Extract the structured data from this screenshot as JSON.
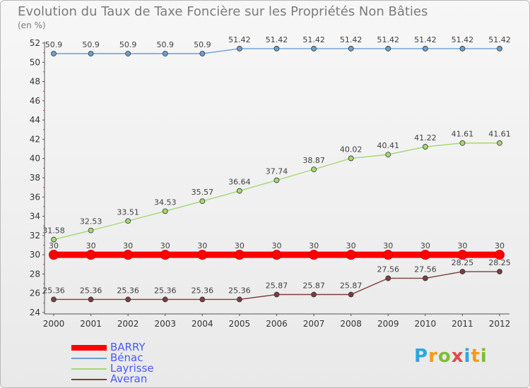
{
  "header": {
    "title": "Evolution du Taux de Taxe Foncière sur les Propriétés Non Bâties",
    "unit": "(en %)"
  },
  "logo": {
    "letters": [
      "P",
      "r",
      "o",
      "x",
      "i",
      "t",
      "i"
    ],
    "colors": [
      "#2aa8e0",
      "#f39c12",
      "#7cbf2f",
      "#e24a4a",
      "#2aa8e0",
      "#f39c12",
      "#7cbf2f"
    ]
  },
  "chart_data": {
    "type": "line",
    "x": [
      "2000",
      "2001",
      "2002",
      "2003",
      "2004",
      "2005",
      "2006",
      "2007",
      "2008",
      "2009",
      "2010",
      "2011",
      "2012"
    ],
    "ylim": [
      24,
      52
    ],
    "yticks": [
      24,
      26,
      28,
      30,
      32,
      34,
      36,
      38,
      40,
      42,
      44,
      46,
      48,
      50,
      52
    ],
    "grid": false,
    "legend_position": "bottom-left",
    "series": [
      {
        "name": "BARRY",
        "color": "#ff0000",
        "values": [
          30,
          30,
          30,
          30,
          30,
          30,
          30,
          30,
          30,
          30,
          30,
          30,
          30
        ],
        "labels": [
          "30",
          "30",
          "30",
          "30",
          "30",
          "30",
          "30",
          "30",
          "30",
          "30",
          "30",
          "30",
          "30"
        ]
      },
      {
        "name": "Bénac",
        "color": "#6a9fd0",
        "values": [
          50.9,
          50.9,
          50.9,
          50.9,
          50.9,
          51.42,
          51.42,
          51.42,
          51.42,
          51.42,
          51.42,
          51.42,
          51.42
        ],
        "labels": [
          "50.9",
          "50.9",
          "50.9",
          "50.9",
          "50.9",
          "51.42",
          "51.42",
          "51.42",
          "51.42",
          "51.42",
          "51.42",
          "51.42",
          "51.42"
        ]
      },
      {
        "name": "Layrisse",
        "color": "#a4d873",
        "values": [
          31.58,
          32.53,
          33.51,
          34.53,
          35.57,
          36.64,
          37.74,
          38.87,
          40.02,
          40.41,
          41.22,
          41.61,
          41.61
        ],
        "labels": [
          "31.58",
          "32.53",
          "33.51",
          "34.53",
          "35.57",
          "36.64",
          "37.74",
          "38.87",
          "40.02",
          "40.41",
          "41.22",
          "41.61",
          "41.61"
        ]
      },
      {
        "name": "Averan",
        "color": "#7d3d3d",
        "values": [
          25.36,
          25.36,
          25.36,
          25.36,
          25.36,
          25.36,
          25.87,
          25.87,
          25.87,
          27.56,
          27.56,
          28.25,
          28.25
        ],
        "labels": [
          "25.36",
          "25.36",
          "25.36",
          "25.36",
          "25.36",
          "25.36",
          "25.87",
          "25.87",
          "25.87",
          "27.56",
          "27.56",
          "28.25",
          "28.25"
        ]
      }
    ]
  }
}
